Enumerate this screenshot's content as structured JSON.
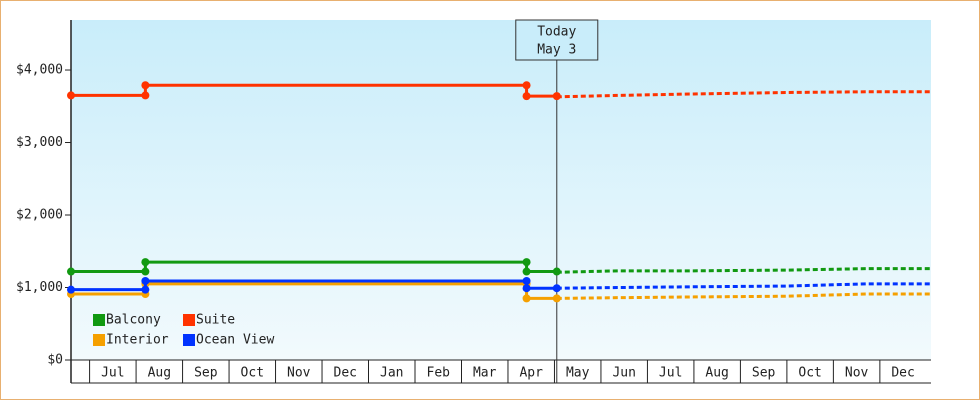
{
  "chart_data": {
    "type": "line",
    "xlim": [
      -0.4,
      18.1
    ],
    "xticks": [
      {
        "value": 0.5,
        "label": "Jul"
      },
      {
        "value": 1.5,
        "label": "Aug"
      },
      {
        "value": 2.5,
        "label": "Sep"
      },
      {
        "value": 3.5,
        "label": "Oct"
      },
      {
        "value": 4.5,
        "label": "Nov"
      },
      {
        "value": 5.5,
        "label": "Dec"
      },
      {
        "value": 6.5,
        "label": "Jan"
      },
      {
        "value": 7.5,
        "label": "Feb"
      },
      {
        "value": 8.5,
        "label": "Mar"
      },
      {
        "value": 9.5,
        "label": "Apr"
      },
      {
        "value": 10.5,
        "label": "May"
      },
      {
        "value": 11.5,
        "label": "Jun"
      },
      {
        "value": 12.5,
        "label": "Jul"
      },
      {
        "value": 13.5,
        "label": "Aug"
      },
      {
        "value": 14.5,
        "label": "Sep"
      },
      {
        "value": 15.5,
        "label": "Oct"
      },
      {
        "value": 16.5,
        "label": "Nov"
      },
      {
        "value": 17.5,
        "label": "Dec"
      }
    ],
    "ylim": [
      0,
      4690
    ],
    "yticks": [
      {
        "value": 0,
        "label": "$0"
      },
      {
        "value": 1000,
        "label": "$1,000"
      },
      {
        "value": 2000,
        "label": "$2,000"
      },
      {
        "value": 3000,
        "label": "$3,000"
      },
      {
        "value": 4000,
        "label": "$4,000"
      }
    ],
    "annotation": {
      "x": 10.05,
      "lines": [
        "Today",
        "May 3"
      ]
    },
    "x": [
      -0.4,
      1.2,
      1.2,
      9.4,
      9.4,
      10.05
    ],
    "forecast_x": [
      10.05,
      11.4,
      13.0,
      15.0,
      16.7,
      18.1
    ],
    "series": [
      {
        "name": "Balcony",
        "color": "#119911",
        "values": [
          1220,
          1220,
          1350,
          1350,
          1220,
          1220
        ],
        "forecast_values": [
          1210,
          1230,
          1230,
          1240,
          1260,
          1260
        ]
      },
      {
        "name": "Suite",
        "color": "#ff3300",
        "values": [
          3650,
          3650,
          3790,
          3790,
          3640,
          3640
        ],
        "forecast_values": [
          3630,
          3650,
          3670,
          3690,
          3700,
          3700
        ]
      },
      {
        "name": "Interior",
        "color": "#f5a000",
        "values": [
          910,
          910,
          1050,
          1050,
          850,
          850
        ],
        "forecast_values": [
          850,
          860,
          870,
          880,
          910,
          910
        ]
      },
      {
        "name": "Ocean View",
        "color": "#0033ff",
        "values": [
          970,
          970,
          1090,
          1090,
          990,
          990
        ],
        "forecast_values": [
          990,
          1000,
          1010,
          1020,
          1050,
          1050
        ]
      }
    ]
  }
}
